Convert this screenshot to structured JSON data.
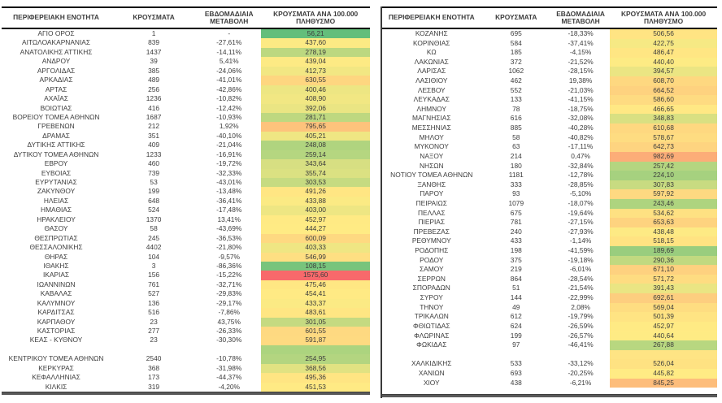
{
  "columns": {
    "region": "ΠΕΡΙΦΕΡΕΙΑΚΗ ΕΝΟΤΗΤΑ",
    "cases": "ΚΡΟΥΣΜΑΤΑ",
    "weekly_change": "ΕΒΔΟΜΑΔΙΑΙΑ ΜΕΤΑΒΟΛΗ",
    "per100k": "ΚΡΟΥΣΜΑΤΑ ΑΝΑ 100.000 ΠΛΗΘΥΣΜΟ"
  },
  "heat_scale": {
    "min": 56.21,
    "mid": 444.27,
    "max": 1575.6,
    "min_color": "#63BE7B",
    "mid_color": "#FFEB84",
    "max_color": "#F8696B"
  },
  "left_table": {
    "rows": [
      {
        "region": "ΑΓΙΟ ΟΡΟΣ",
        "cases": "1",
        "change": "-",
        "per100k": "56,21"
      },
      {
        "region": "ΑΙΤΩΛΟΑΚΑΡΝΑΝΙΑΣ",
        "cases": "839",
        "change": "-27,61%",
        "per100k": "437,60"
      },
      {
        "region": "ΑΝΑΤΟΛΙΚΗΣ ΑΤΤΙΚΗΣ",
        "cases": "1437",
        "change": "-14,11%",
        "per100k": "278,19"
      },
      {
        "region": "ΑΝΔΡΟΥ",
        "cases": "39",
        "change": "5,41%",
        "per100k": "439,04"
      },
      {
        "region": "ΑΡΓΟΛΙΔΑΣ",
        "cases": "385",
        "change": "-24,06%",
        "per100k": "412,73"
      },
      {
        "region": "ΑΡΚΑΔΙΑΣ",
        "cases": "489",
        "change": "-41,01%",
        "per100k": "630,55"
      },
      {
        "region": "ΑΡΤΑΣ",
        "cases": "256",
        "change": "-42,86%",
        "per100k": "400,46"
      },
      {
        "region": "ΑΧΑΪΑΣ",
        "cases": "1236",
        "change": "-10,82%",
        "per100k": "408,90"
      },
      {
        "region": "ΒΟΙΩΤΙΑΣ",
        "cases": "416",
        "change": "-12,42%",
        "per100k": "392,06"
      },
      {
        "region": "ΒΟΡΕΙΟΥ ΤΟΜΕΑ ΑΘΗΝΩΝ",
        "cases": "1687",
        "change": "-10,93%",
        "per100k": "281,71"
      },
      {
        "region": "ΓΡΕΒΕΝΩΝ",
        "cases": "212",
        "change": "1,92%",
        "per100k": "795,65"
      },
      {
        "region": "ΔΡΑΜΑΣ",
        "cases": "351",
        "change": "-40,10%",
        "per100k": "405,21"
      },
      {
        "region": "ΔΥΤΙΚΗΣ ΑΤΤΙΚΗΣ",
        "cases": "409",
        "change": "-21,04%",
        "per100k": "248,08"
      },
      {
        "region": "ΔΥΤΙΚΟΥ ΤΟΜΕΑ ΑΘΗΝΩΝ",
        "cases": "1233",
        "change": "-16,91%",
        "per100k": "259,14"
      },
      {
        "region": "ΕΒΡΟΥ",
        "cases": "460",
        "change": "-19,72%",
        "per100k": "343,64"
      },
      {
        "region": "ΕΥΒΟΙΑΣ",
        "cases": "739",
        "change": "-32,33%",
        "per100k": "355,74"
      },
      {
        "region": "ΕΥΡΥΤΑΝΙΑΣ",
        "cases": "53",
        "change": "-43,01%",
        "per100k": "303,53"
      },
      {
        "region": "ΖΑΚΥΝΘΟΥ",
        "cases": "199",
        "change": "-13,48%",
        "per100k": "491,26"
      },
      {
        "region": "ΗΛΕΙΑΣ",
        "cases": "648",
        "change": "-36,41%",
        "per100k": "433,88"
      },
      {
        "region": "ΗΜΑΘΙΑΣ",
        "cases": "524",
        "change": "-17,48%",
        "per100k": "403,00"
      },
      {
        "region": "ΗΡΑΚΛΕΙΟΥ",
        "cases": "1370",
        "change": "13,41%",
        "per100k": "452,97"
      },
      {
        "region": "ΘΑΣΟΥ",
        "cases": "58",
        "change": "-43,69%",
        "per100k": "444,27"
      },
      {
        "region": "ΘΕΣΠΡΩΤΙΑΣ",
        "cases": "245",
        "change": "-36,53%",
        "per100k": "600,09"
      },
      {
        "region": "ΘΕΣΣΑΛΟΝΙΚΗΣ",
        "cases": "4402",
        "change": "-21,80%",
        "per100k": "403,33"
      },
      {
        "region": "ΘΗΡΑΣ",
        "cases": "104",
        "change": "-9,57%",
        "per100k": "546,99"
      },
      {
        "region": "ΙΘΑΚΗΣ",
        "cases": "3",
        "change": "-86,36%",
        "per100k": "108,15"
      },
      {
        "region": "ΙΚΑΡΙΑΣ",
        "cases": "156",
        "change": "-15,22%",
        "per100k": "1575,60"
      },
      {
        "region": "ΙΩΑΝΝΙΝΩΝ",
        "cases": "761",
        "change": "-32,71%",
        "per100k": "475,46"
      },
      {
        "region": "ΚΑΒΑΛΑΣ",
        "cases": "527",
        "change": "-29,83%",
        "per100k": "454,41"
      },
      {
        "region": "ΚΑΛΥΜΝΟΥ",
        "cases": "136",
        "change": "-29,17%",
        "per100k": "433,37"
      },
      {
        "region": "ΚΑΡΔΙΤΣΑΣ",
        "cases": "516",
        "change": "-7,86%",
        "per100k": "483,61"
      },
      {
        "region": "ΚΑΡΠΑΘΟΥ",
        "cases": "23",
        "change": "43,75%",
        "per100k": "301,05"
      },
      {
        "region": "ΚΑΣΤΟΡΙΑΣ",
        "cases": "277",
        "change": "-26,33%",
        "per100k": "601,55"
      },
      {
        "region": "ΚΕΑΣ - ΚΥΘΝΟΥ",
        "cases": "23",
        "change": "-30,30%",
        "per100k": "591,87"
      },
      {
        "region": "",
        "cases": "",
        "change": "",
        "per100k": "",
        "spacer_color": "#ACD47F"
      },
      {
        "region": "ΚΕΝΤΡΙΚΟΥ ΤΟΜΕΑ ΑΘΗΝΩΝ",
        "cases": "2540",
        "change": "-10,78%",
        "per100k": "254,95"
      },
      {
        "region": "ΚΕΡΚΥΡΑΣ",
        "cases": "368",
        "change": "-31,98%",
        "per100k": "368,56"
      },
      {
        "region": "ΚΕΦΑΛΛΗΝΙΑΣ",
        "cases": "173",
        "change": "-44,37%",
        "per100k": "495,36"
      },
      {
        "region": "ΚΙΛΚΙΣ",
        "cases": "319",
        "change": "-4,20%",
        "per100k": "451,53"
      }
    ]
  },
  "right_table": {
    "rows": [
      {
        "region": "ΚΟΖΑΝΗΣ",
        "cases": "695",
        "change": "-18,33%",
        "per100k": "506,56"
      },
      {
        "region": "ΚΟΡΙΝΘΙΑΣ",
        "cases": "584",
        "change": "-37,41%",
        "per100k": "422,75"
      },
      {
        "region": "ΚΩ",
        "cases": "185",
        "change": "-4,15%",
        "per100k": "486,47"
      },
      {
        "region": "ΛΑΚΩΝΙΑΣ",
        "cases": "372",
        "change": "-21,52%",
        "per100k": "440,40"
      },
      {
        "region": "ΛΑΡΙΣΑΣ",
        "cases": "1062",
        "change": "-28,15%",
        "per100k": "394,57"
      },
      {
        "region": "ΛΑΣΙΘΙΟΥ",
        "cases": "462",
        "change": "19,38%",
        "per100k": "608,70"
      },
      {
        "region": "ΛΕΣΒΟΥ",
        "cases": "552",
        "change": "-21,03%",
        "per100k": "664,52"
      },
      {
        "region": "ΛΕΥΚΑΔΑΣ",
        "cases": "133",
        "change": "-41,15%",
        "per100k": "586,60"
      },
      {
        "region": "ΛΗΜΝΟΥ",
        "cases": "78",
        "change": "-18,75%",
        "per100k": "466,65"
      },
      {
        "region": "ΜΑΓΝΗΣΙΑΣ",
        "cases": "616",
        "change": "-32,08%",
        "per100k": "348,83"
      },
      {
        "region": "ΜΕΣΣΗΝΙΑΣ",
        "cases": "885",
        "change": "-40,28%",
        "per100k": "610,68"
      },
      {
        "region": "ΜΗΛΟΥ",
        "cases": "58",
        "change": "-40,82%",
        "per100k": "578,67"
      },
      {
        "region": "ΜΥΚΟΝΟΥ",
        "cases": "63",
        "change": "-17,11%",
        "per100k": "642,73"
      },
      {
        "region": "ΝΑΞΟΥ",
        "cases": "214",
        "change": "0,47%",
        "per100k": "982,69"
      },
      {
        "region": "ΝΗΣΩΝ",
        "cases": "180",
        "change": "-32,84%",
        "per100k": "257,42"
      },
      {
        "region": "ΝΟΤΙΟΥ ΤΟΜΕΑ ΑΘΗΝΩΝ",
        "cases": "1181",
        "change": "-12,78%",
        "per100k": "224,10"
      },
      {
        "region": "ΞΑΝΘΗΣ",
        "cases": "333",
        "change": "-28,85%",
        "per100k": "307,83"
      },
      {
        "region": "ΠΑΡΟΥ",
        "cases": "93",
        "change": "-5,10%",
        "per100k": "597,92"
      },
      {
        "region": "ΠΕΙΡΑΙΩΣ",
        "cases": "1079",
        "change": "-18,07%",
        "per100k": "243,46"
      },
      {
        "region": "ΠΕΛΛΑΣ",
        "cases": "675",
        "change": "-19,64%",
        "per100k": "534,62"
      },
      {
        "region": "ΠΙΕΡΙΑΣ",
        "cases": "781",
        "change": "-27,15%",
        "per100k": "653,63"
      },
      {
        "region": "ΠΡΕΒΕΖΑΣ",
        "cases": "240",
        "change": "-27,93%",
        "per100k": "438,48"
      },
      {
        "region": "ΡΕΘΥΜΝΟΥ",
        "cases": "433",
        "change": "-1,14%",
        "per100k": "518,15"
      },
      {
        "region": "ΡΟΔΟΠΗΣ",
        "cases": "198",
        "change": "-41,59%",
        "per100k": "189,69"
      },
      {
        "region": "ΡΟΔΟΥ",
        "cases": "375",
        "change": "-19,18%",
        "per100k": "290,36"
      },
      {
        "region": "ΣΑΜΟΥ",
        "cases": "219",
        "change": "-6,01%",
        "per100k": "671,10"
      },
      {
        "region": "ΣΕΡΡΩΝ",
        "cases": "864",
        "change": "-28,54%",
        "per100k": "571,72"
      },
      {
        "region": "ΣΠΟΡΑΔΩΝ",
        "cases": "51",
        "change": "-21,54%",
        "per100k": "391,43"
      },
      {
        "region": "ΣΥΡΟΥ",
        "cases": "144",
        "change": "-22,99%",
        "per100k": "692,61"
      },
      {
        "region": "ΤΗΝΟΥ",
        "cases": "49",
        "change": "2,08%",
        "per100k": "569,04"
      },
      {
        "region": "ΤΡΙΚΑΛΩΝ",
        "cases": "612",
        "change": "-19,79%",
        "per100k": "501,39"
      },
      {
        "region": "ΦΘΙΩΤΙΔΑΣ",
        "cases": "624",
        "change": "-26,59%",
        "per100k": "452,97"
      },
      {
        "region": "ΦΛΩΡΙΝΑΣ",
        "cases": "199",
        "change": "-26,57%",
        "per100k": "440,64"
      },
      {
        "region": "ΦΩΚΙΔΑΣ",
        "cases": "97",
        "change": "-46,41%",
        "per100k": "267,88"
      },
      {
        "region": "",
        "cases": "",
        "change": "",
        "per100k": "",
        "spacer_color": "#FEE484"
      },
      {
        "region": "ΧΑΛΚΙΔΙΚΗΣ",
        "cases": "533",
        "change": "-33,12%",
        "per100k": "526,04"
      },
      {
        "region": "ΧΑΝΙΩΝ",
        "cases": "693",
        "change": "-20,25%",
        "per100k": "445,82"
      },
      {
        "region": "ΧΙΟΥ",
        "cases": "438",
        "change": "-6,21%",
        "per100k": "845,25"
      }
    ]
  }
}
